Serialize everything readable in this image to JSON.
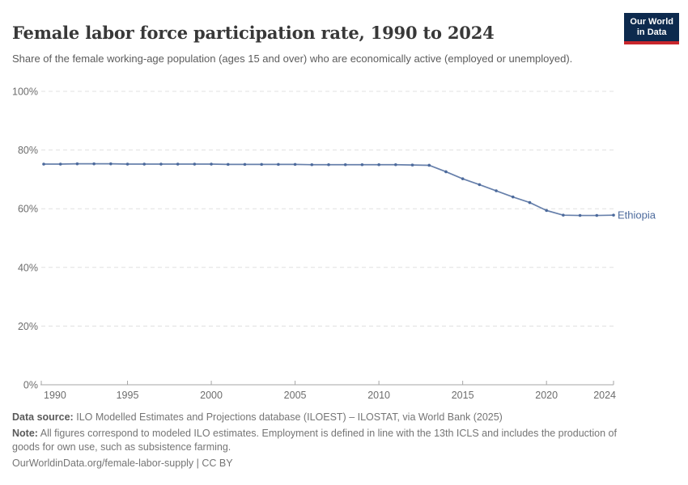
{
  "header": {
    "title": "Female labor force participation rate, 1990 to 2024",
    "subtitle": "Share of the female working-age population (ages 15 and over) who are economically active (employed or unemployed).",
    "logo": {
      "line1": "Our World",
      "line2": "in Data",
      "bg_color": "#0d2a4e",
      "bar_color": "#c8262c"
    }
  },
  "chart_data": {
    "type": "line",
    "title": "Female labor force participation rate, 1990 to 2024",
    "subtitle": "Share of the female working-age population (ages 15 and over) who are economically active (employed or unemployed).",
    "xlabel": "",
    "ylabel": "",
    "xlim": [
      1990,
      2024
    ],
    "ylim": [
      0,
      100
    ],
    "x_ticks": [
      1990,
      1995,
      2000,
      2005,
      2010,
      2015,
      2020,
      2024
    ],
    "y_ticks": [
      0,
      20,
      40,
      60,
      80,
      100
    ],
    "y_tick_suffix": "%",
    "grid": "horizontal-dashed",
    "legend_position": "end-of-line-label",
    "colors": {
      "gridline": "#e0e0e0",
      "axis": "#a6a6a6",
      "tick_label": "#6d6d6d"
    },
    "series": [
      {
        "name": "Ethiopia",
        "color": "#4c6a9c",
        "x": [
          1990,
          1991,
          1992,
          1993,
          1994,
          1995,
          1996,
          1997,
          1998,
          1999,
          2000,
          2001,
          2002,
          2003,
          2004,
          2005,
          2006,
          2007,
          2008,
          2009,
          2010,
          2011,
          2012,
          2013,
          2014,
          2015,
          2016,
          2017,
          2018,
          2019,
          2020,
          2021,
          2022,
          2023,
          2024
        ],
        "values": [
          75.2,
          75.2,
          75.3,
          75.3,
          75.3,
          75.2,
          75.2,
          75.2,
          75.2,
          75.2,
          75.2,
          75.1,
          75.1,
          75.1,
          75.1,
          75.1,
          75.0,
          75.0,
          75.0,
          75.0,
          75.0,
          75.0,
          74.9,
          74.8,
          72.6,
          70.2,
          68.2,
          66.1,
          64.0,
          62.1,
          59.4,
          57.8,
          57.7,
          57.7,
          57.8
        ]
      }
    ]
  },
  "footer": {
    "data_source_label": "Data source:",
    "data_source": "ILO Modelled Estimates and Projections database (ILOEST) – ILOSTAT, via World Bank (2025)",
    "note_label": "Note:",
    "note": "All figures correspond to modeled ILO estimates. Employment is defined in line with the 13th ICLS and includes the production of goods for own use, such as subsistence farming.",
    "url": "OurWorldinData.org/female-labor-supply | CC BY"
  }
}
